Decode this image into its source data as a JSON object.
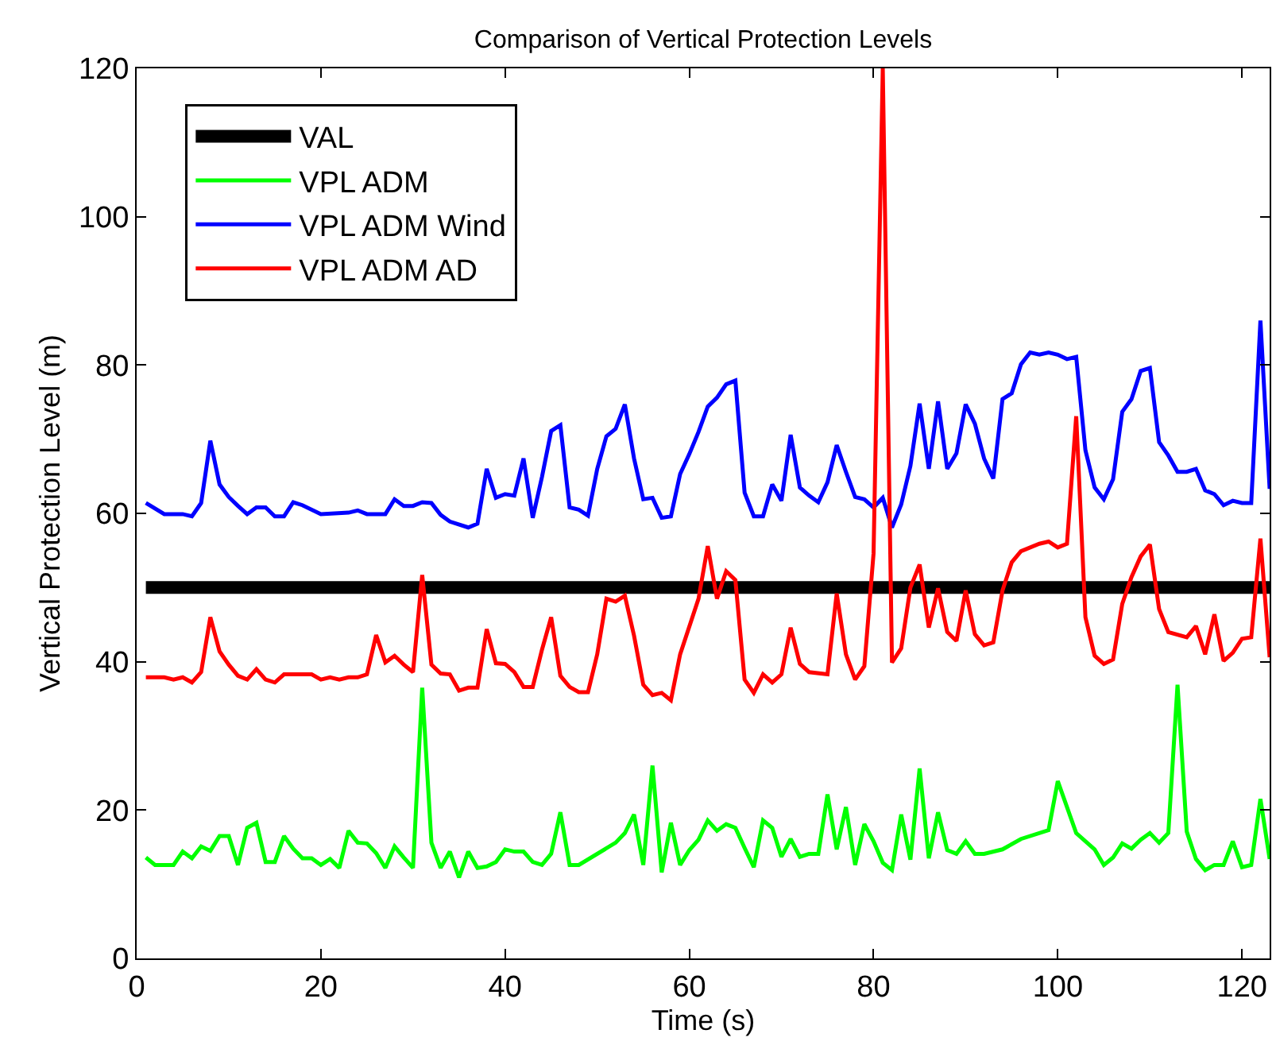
{
  "chart_data": {
    "type": "line",
    "title": "Comparison of Vertical Protection Levels",
    "xlabel": "Time (s)",
    "ylabel": "Vertical Protection Level (m)",
    "xlim": [
      0,
      123
    ],
    "xticks": [
      0,
      20,
      40,
      60,
      80,
      100,
      120
    ],
    "ylim": [
      0,
      120
    ],
    "yticks": [
      0,
      20,
      40,
      60,
      80,
      100,
      120
    ],
    "legend": "top left",
    "marker": "none",
    "line_style": "solid",
    "series": [
      {
        "name": "VAL",
        "color": "#000000",
        "x": [
          1,
          123
        ],
        "values": [
          50,
          50
        ]
      },
      {
        "name": "VPL ADM",
        "color": "#00ff00",
        "x": [
          1,
          2,
          4,
          5,
          6,
          7,
          8,
          9,
          10,
          11,
          12,
          13,
          14,
          15,
          16,
          17,
          18,
          19,
          20,
          21,
          22,
          23,
          24,
          25,
          26,
          27,
          28,
          29,
          30,
          31,
          32,
          33,
          34,
          35,
          36,
          37,
          38,
          39,
          40,
          41,
          42,
          43,
          44,
          45,
          46,
          47,
          48,
          52,
          53,
          54,
          55,
          56,
          57,
          58,
          59,
          60,
          61,
          62,
          63,
          64,
          65,
          66,
          67,
          68,
          69,
          70,
          71,
          72,
          73,
          74,
          75,
          76,
          77,
          78,
          79,
          80,
          81,
          82,
          83,
          84,
          85,
          86,
          87,
          88,
          89,
          90,
          91,
          92,
          94,
          96,
          99,
          100,
          102,
          104,
          105,
          106,
          107,
          108,
          109,
          110,
          111,
          112,
          113,
          114,
          115,
          116,
          117,
          118,
          119,
          120,
          121,
          122,
          123
        ],
        "values": [
          13.6,
          12.6,
          12.6,
          14.4,
          13.5,
          15.1,
          14.5,
          16.5,
          16.5,
          12.6,
          17.6,
          18.3,
          13,
          13,
          16.5,
          14.8,
          13.5,
          13.5,
          12.6,
          13.4,
          12.2,
          17.2,
          15.6,
          15.5,
          14.2,
          12.2,
          15.1,
          13.6,
          12.2,
          36.5,
          15.6,
          12.2,
          14.4,
          10.9,
          14.4,
          12.2,
          12.4,
          13,
          14.7,
          14.4,
          14.4,
          13,
          12.6,
          14.1,
          19.7,
          12.6,
          12.6,
          15.6,
          16.9,
          19.4,
          12.6,
          26,
          11.6,
          18.3,
          12.6,
          14.6,
          16,
          18.6,
          17.2,
          18.1,
          17.6,
          14.9,
          12.3,
          18.6,
          17.6,
          13.7,
          16.1,
          13.7,
          14.1,
          14.1,
          22.1,
          14.7,
          20.4,
          12.6,
          18.1,
          15.8,
          12.9,
          11.9,
          19.4,
          13.3,
          25.6,
          13.5,
          19.7,
          14.6,
          14.1,
          15.8,
          14.1,
          14.1,
          14.7,
          16.1,
          17.3,
          23.9,
          16.9,
          14.7,
          12.6,
          13.6,
          15.5,
          14.8,
          16,
          16.9,
          15.6,
          16.9,
          36.9,
          17.1,
          13.4,
          11.9,
          12.6,
          12.6,
          15.8,
          12.3,
          12.6,
          21.5,
          13.4
        ]
      },
      {
        "name": "VPL ADM Wind",
        "color": "#0000ff",
        "x": [
          1,
          3,
          5,
          6,
          7,
          8,
          9,
          10,
          11,
          12,
          13,
          14,
          15,
          16,
          17,
          18,
          20,
          23,
          24,
          25,
          27,
          28,
          29,
          30,
          31,
          32,
          33,
          34,
          36,
          37,
          38,
          39,
          40,
          41,
          42,
          43,
          44,
          45,
          46,
          47,
          48,
          49,
          50,
          51,
          52,
          53,
          54,
          55,
          56,
          57,
          58,
          59,
          60,
          61,
          62,
          63,
          64,
          65,
          66,
          67,
          68,
          69,
          70,
          71,
          72,
          73,
          74,
          75,
          76,
          77,
          78,
          79,
          80,
          81,
          82,
          83,
          84,
          85,
          86,
          87,
          88,
          89,
          90,
          91,
          92,
          93,
          94,
          95,
          96,
          97,
          98,
          99,
          100,
          101,
          102,
          103,
          104,
          105,
          106,
          107,
          108,
          109,
          110,
          111,
          112,
          113,
          114,
          115,
          116,
          117,
          118,
          119,
          120,
          121,
          122,
          123
        ],
        "values": [
          61.4,
          59.9,
          59.9,
          59.6,
          61.4,
          69.8,
          63.9,
          62.2,
          61,
          59.9,
          60.8,
          60.8,
          59.6,
          59.6,
          61.5,
          61.1,
          59.9,
          60.1,
          60.4,
          59.9,
          59.9,
          61.9,
          61,
          61,
          61.5,
          61.4,
          59.8,
          58.9,
          58.1,
          58.6,
          66,
          62.1,
          62.6,
          62.4,
          67.4,
          59.4,
          64.9,
          71.1,
          71.9,
          60.8,
          60.5,
          59.7,
          66,
          70.4,
          71.4,
          74.7,
          67.4,
          61.9,
          62.1,
          59.4,
          59.6,
          65.3,
          68,
          71,
          74.4,
          75.6,
          77.4,
          77.9,
          62.8,
          59.6,
          59.6,
          63.9,
          61.7,
          70.6,
          63.5,
          62.4,
          61.5,
          64.2,
          69.2,
          65.6,
          62.2,
          61.9,
          60.8,
          62.1,
          58.1,
          61.2,
          66.4,
          74.8,
          66,
          75.1,
          66,
          68.1,
          74.7,
          72.1,
          67.4,
          64.7,
          75.4,
          76.2,
          80.1,
          81.7,
          81.4,
          81.7,
          81.4,
          80.8,
          81.1,
          68.5,
          63.5,
          61.9,
          64.6,
          73.7,
          75.4,
          79.2,
          79.6,
          69.6,
          67.8,
          65.6,
          65.6,
          66,
          63.1,
          62.6,
          61.1,
          61.7,
          61.4,
          61.4,
          86,
          63.3
        ]
      },
      {
        "name": "VPL ADM AD",
        "color": "#ff0000",
        "x": [
          1,
          3,
          4,
          5,
          6,
          7,
          8,
          9,
          10,
          11,
          12,
          13,
          14,
          15,
          16,
          17,
          19,
          20,
          21,
          22,
          23,
          24,
          25,
          26,
          27,
          28,
          29,
          30,
          31,
          32,
          33,
          34,
          35,
          36,
          37,
          38,
          39,
          40,
          41,
          42,
          43,
          44,
          45,
          46,
          47,
          48,
          49,
          50,
          51,
          52,
          53,
          54,
          55,
          56,
          57,
          58,
          59,
          61,
          62,
          63,
          64,
          65,
          66,
          67,
          68,
          69,
          70,
          71,
          72,
          73,
          75,
          76,
          77,
          78,
          79,
          80,
          81,
          82,
          83,
          84,
          85,
          86,
          87,
          88,
          89,
          90,
          91,
          92,
          93,
          94,
          95,
          96,
          98,
          99,
          100,
          101,
          102,
          103,
          104,
          105,
          106,
          107,
          108,
          109,
          110,
          111,
          112,
          114,
          115,
          116,
          117,
          118,
          119,
          120,
          121,
          122,
          123
        ],
        "values": [
          37.9,
          37.9,
          37.6,
          37.9,
          37.2,
          38.6,
          46,
          41.4,
          39.6,
          38.1,
          37.6,
          39,
          37.6,
          37.2,
          38.3,
          38.3,
          38.3,
          37.6,
          37.9,
          37.6,
          37.9,
          37.9,
          38.3,
          43.6,
          39.9,
          40.8,
          39.6,
          38.6,
          51.7,
          39.6,
          38.4,
          38.3,
          36.1,
          36.5,
          36.5,
          44.4,
          39.8,
          39.7,
          38.6,
          36.6,
          36.6,
          41.6,
          46,
          38.1,
          36.6,
          35.9,
          35.9,
          41,
          48.5,
          48.1,
          48.9,
          43.5,
          36.9,
          35.5,
          35.8,
          34.8,
          41,
          48.5,
          55.6,
          48.5,
          52.2,
          51,
          37.6,
          35.8,
          38.3,
          37.2,
          38.3,
          44.6,
          39.7,
          38.6,
          38.3,
          49.2,
          41,
          37.6,
          39.4,
          54.6,
          120,
          39.9,
          41.8,
          50,
          53.1,
          44.6,
          49.9,
          44,
          42.8,
          49.6,
          43.7,
          42.2,
          42.6,
          49.6,
          53.4,
          54.9,
          55.9,
          56.2,
          55.4,
          55.9,
          73.1,
          46,
          40.8,
          39.7,
          40.3,
          47.8,
          51.4,
          54.2,
          55.8,
          47.1,
          44,
          43.3,
          44.8,
          41,
          46.4,
          40.1,
          41.2,
          43.1,
          43.3,
          56.6,
          40.6
        ]
      }
    ]
  }
}
